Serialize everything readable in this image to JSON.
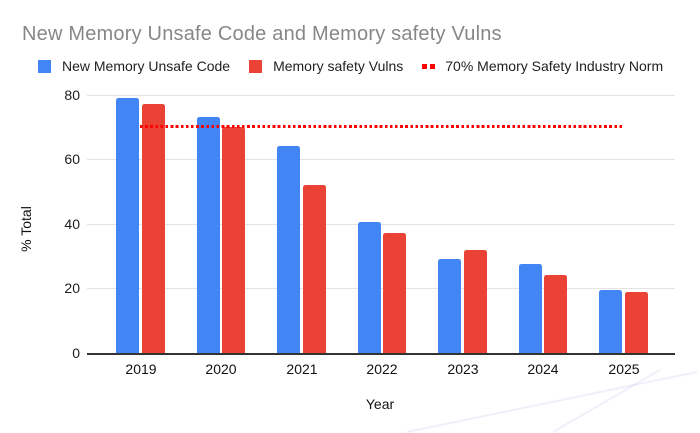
{
  "title": "New Memory Unsafe Code and Memory safety Vulns",
  "legend": {
    "items": [
      {
        "label": "New Memory Unsafe Code",
        "swatch": "square",
        "color": "#4285F4"
      },
      {
        "label": "Memory safety Vulns",
        "swatch": "square",
        "color": "#EA4335"
      },
      {
        "label": "70% Memory Safety Industry Norm",
        "swatch": "dotted-line",
        "color": "#FF0000"
      }
    ]
  },
  "chart_data": {
    "type": "bar",
    "title": "New Memory Unsafe Code and Memory safety Vulns",
    "categories": [
      "2019",
      "2020",
      "2021",
      "2022",
      "2023",
      "2024",
      "2025"
    ],
    "series": [
      {
        "name": "New Memory Unsafe Code",
        "color": "#4285F4",
        "values": [
          79,
          73,
          64,
          40.5,
          29,
          27.5,
          19.5
        ]
      },
      {
        "name": "Memory safety Vulns",
        "color": "#EA4335",
        "values": [
          77,
          70,
          52,
          37,
          32,
          24,
          19
        ]
      }
    ],
    "reference_line": {
      "name": "70% Memory Safety Industry Norm",
      "value": 70,
      "color": "#FF0000",
      "style": "dotted"
    },
    "xlabel": "Year",
    "ylabel": "% Total",
    "ylim": [
      0,
      80
    ],
    "yticks": [
      0,
      20,
      40,
      60,
      80
    ],
    "grid": true,
    "legend_position": "top",
    "colors": {
      "background": "#FFFFFF",
      "gridline": "#E3E3E3",
      "axis_line": "#333333",
      "title_text": "#878787",
      "tick_text": "#1D1D1D",
      "legend_text": "#1F1F1F"
    }
  }
}
